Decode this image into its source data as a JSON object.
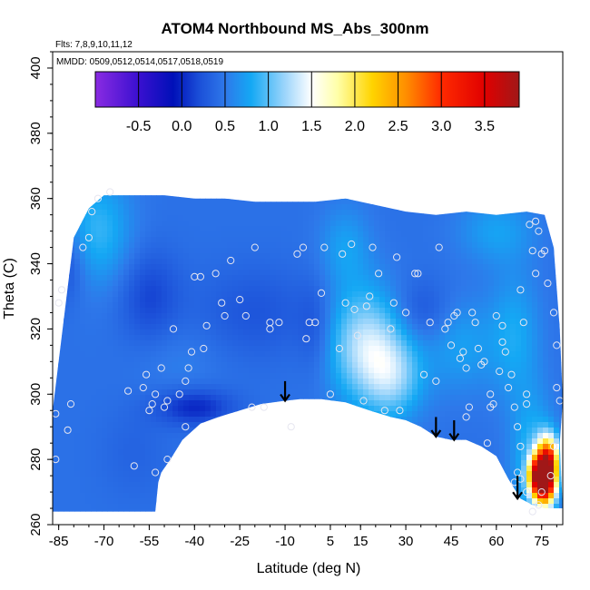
{
  "chart_data": {
    "type": "heatmap",
    "title": "ATOM4 Northbound MS_Abs_300nm",
    "subtitle_flights": "Flts: 7,8,9,10,11,12",
    "subtitle_dates": "MMDD: 0509,0512,0514,0517,0518,0519",
    "xlabel": "Latitude (deg N)",
    "ylabel": "Theta (C)",
    "xlim": [
      -87,
      82
    ],
    "ylim": [
      260,
      405
    ],
    "x_ticks": [
      -85,
      -70,
      -55,
      -40,
      -25,
      -10,
      5,
      15,
      30,
      45,
      60,
      75
    ],
    "x_tick_labels": [
      "-85",
      "-70",
      "-55",
      "-40",
      "-25",
      "-10",
      "5",
      "15",
      "30",
      "45",
      "60",
      "75"
    ],
    "y_ticks": [
      260,
      280,
      300,
      320,
      340,
      360,
      380,
      400
    ],
    "y_tick_labels": [
      "260",
      "280",
      "300",
      "320",
      "340",
      "360",
      "380",
      "400"
    ],
    "colorbar": {
      "range": [
        -1.0,
        3.9
      ],
      "ticks": [
        -0.5,
        0.0,
        0.5,
        1.0,
        1.5,
        2.0,
        2.5,
        3.0,
        3.5
      ],
      "tick_labels": [
        "-0.5",
        "0.0",
        "0.5",
        "1.0",
        "1.5",
        "2.0",
        "2.5",
        "3.0",
        "3.5"
      ],
      "stops": [
        {
          "v": -1.0,
          "color": "#8a2be2"
        },
        {
          "v": -0.5,
          "color": "#3a10d0"
        },
        {
          "v": -0.1,
          "color": "#0010b8"
        },
        {
          "v": 0.2,
          "color": "#1b4fd8"
        },
        {
          "v": 0.5,
          "color": "#2e78ea"
        },
        {
          "v": 0.8,
          "color": "#14a8f4"
        },
        {
          "v": 1.2,
          "color": "#9fd6fb"
        },
        {
          "v": 1.5,
          "color": "#ffffff"
        },
        {
          "v": 1.8,
          "color": "#ffffa8"
        },
        {
          "v": 2.2,
          "color": "#ffd400"
        },
        {
          "v": 2.6,
          "color": "#ff8c00"
        },
        {
          "v": 3.0,
          "color": "#ff2a00"
        },
        {
          "v": 3.5,
          "color": "#e00000"
        },
        {
          "v": 3.9,
          "color": "#a01818"
        }
      ]
    },
    "field_outline": [
      [
        -87,
        260
      ],
      [
        -87,
        295
      ],
      [
        -80,
        348
      ],
      [
        -75,
        357
      ],
      [
        -70,
        361
      ],
      [
        -60,
        361
      ],
      [
        -50,
        361
      ],
      [
        -40,
        360
      ],
      [
        -30,
        360
      ],
      [
        -20,
        359
      ],
      [
        -10,
        359
      ],
      [
        0,
        359
      ],
      [
        10,
        360
      ],
      [
        20,
        358
      ],
      [
        30,
        356
      ],
      [
        40,
        355
      ],
      [
        50,
        356
      ],
      [
        60,
        355
      ],
      [
        70,
        356
      ],
      [
        76,
        355
      ],
      [
        79,
        345
      ],
      [
        81,
        320
      ],
      [
        82,
        298
      ],
      [
        81,
        285
      ],
      [
        82,
        265
      ],
      [
        76,
        265
      ],
      [
        72,
        266
      ],
      [
        68,
        268
      ],
      [
        64,
        274
      ],
      [
        60,
        281
      ],
      [
        55,
        284
      ],
      [
        50,
        286
      ],
      [
        45,
        286
      ],
      [
        40,
        287
      ],
      [
        35,
        290
      ],
      [
        30,
        292
      ],
      [
        25,
        293
      ],
      [
        18,
        295
      ],
      [
        10,
        297.5
      ],
      [
        2,
        298.5
      ],
      [
        -5,
        298.5
      ],
      [
        -10,
        298
      ],
      [
        -18,
        297
      ],
      [
        -25,
        295
      ],
      [
        -32,
        293
      ],
      [
        -38,
        291
      ],
      [
        -44,
        286
      ],
      [
        -48,
        280
      ],
      [
        -51,
        276
      ],
      [
        -52,
        273
      ],
      [
        -53,
        264
      ],
      [
        -87,
        264
      ],
      [
        -87,
        260
      ]
    ],
    "background_value": 0.45,
    "field_features": [
      {
        "x": 17,
        "y": 315,
        "sx": 9,
        "sy": 12,
        "v": 1.3
      },
      {
        "x": 26,
        "y": 305,
        "sx": 7,
        "sy": 9,
        "v": 1.0
      },
      {
        "x": -72,
        "y": 350,
        "sx": 8,
        "sy": 12,
        "v": 0.9
      },
      {
        "x": 10,
        "y": 345,
        "sx": 6,
        "sy": 9,
        "v": 0.75
      },
      {
        "x": 48,
        "y": 315,
        "sx": 8,
        "sy": 10,
        "v": 0.75
      },
      {
        "x": 66,
        "y": 318,
        "sx": 6,
        "sy": 14,
        "v": 0.8
      },
      {
        "x": -45,
        "y": 310,
        "sx": 10,
        "sy": 8,
        "v": 0.55
      },
      {
        "x": 60,
        "y": 350,
        "sx": 9,
        "sy": 7,
        "v": 0.75
      },
      {
        "x": 72,
        "y": 280,
        "sx": 5,
        "sy": 14,
        "v": 0.9
      },
      {
        "x": -40,
        "y": 296,
        "sx": 9,
        "sy": 4,
        "v": 0.0
      },
      {
        "x": -55,
        "y": 330,
        "sx": 7,
        "sy": 10,
        "v": 0.15
      },
      {
        "x": -83,
        "y": 340,
        "sx": 5,
        "sy": 8,
        "v": 0.15
      },
      {
        "x": -20,
        "y": 325,
        "sx": 14,
        "sy": 10,
        "v": 0.25
      },
      {
        "x": 35,
        "y": 325,
        "sx": 7,
        "sy": 7,
        "v": 0.2
      },
      {
        "x": 0,
        "y": 320,
        "sx": 4,
        "sy": 10,
        "v": 0.25
      },
      {
        "x": -60,
        "y": 282,
        "sx": 8,
        "sy": 10,
        "v": 0.35
      },
      {
        "x": 76,
        "y": 273,
        "sx": 2.5,
        "sy": 5,
        "v": 3.6
      },
      {
        "x": 77,
        "y": 280,
        "sx": 2.5,
        "sy": 5,
        "v": 2.7
      },
      {
        "x": 73,
        "y": 275,
        "sx": 2,
        "sy": 4,
        "v": 2.0
      }
    ],
    "sample_points": [
      [
        -86,
        294
      ],
      [
        -86,
        280
      ],
      [
        -84,
        332
      ],
      [
        -85,
        328
      ],
      [
        -82,
        289
      ],
      [
        -81,
        297
      ],
      [
        -77,
        345
      ],
      [
        -75,
        348
      ],
      [
        -74,
        356
      ],
      [
        -72,
        360
      ],
      [
        -68,
        362
      ],
      [
        -62,
        301
      ],
      [
        -60,
        278
      ],
      [
        -57,
        302
      ],
      [
        -56,
        306
      ],
      [
        -55,
        295
      ],
      [
        -54,
        297
      ],
      [
        -53,
        300
      ],
      [
        -53,
        276
      ],
      [
        -51,
        308
      ],
      [
        -50,
        296
      ],
      [
        -49,
        298
      ],
      [
        -49,
        280
      ],
      [
        -47,
        320
      ],
      [
        -45,
        300
      ],
      [
        -43,
        304
      ],
      [
        -42,
        308
      ],
      [
        -43,
        290
      ],
      [
        -41,
        313
      ],
      [
        -40,
        336
      ],
      [
        -38,
        336
      ],
      [
        -37,
        314
      ],
      [
        -36,
        321
      ],
      [
        -33,
        337
      ],
      [
        -31,
        328
      ],
      [
        -30,
        324
      ],
      [
        -28,
        341
      ],
      [
        -25,
        329
      ],
      [
        -23,
        324
      ],
      [
        -21,
        296
      ],
      [
        -20,
        345
      ],
      [
        -17,
        296
      ],
      [
        -15,
        320
      ],
      [
        -15,
        322
      ],
      [
        -12,
        322
      ],
      [
        -8,
        290
      ],
      [
        -6,
        343
      ],
      [
        -4,
        345
      ],
      [
        -3,
        317
      ],
      [
        -2,
        322
      ],
      [
        0,
        322
      ],
      [
        2,
        331
      ],
      [
        3,
        345
      ],
      [
        5,
        300
      ],
      [
        8,
        314
      ],
      [
        9,
        343
      ],
      [
        10,
        328
      ],
      [
        12,
        346
      ],
      [
        13,
        326
      ],
      [
        14,
        318
      ],
      [
        16,
        298
      ],
      [
        17,
        327
      ],
      [
        18,
        330
      ],
      [
        19,
        345
      ],
      [
        21,
        337
      ],
      [
        23,
        295
      ],
      [
        25,
        320
      ],
      [
        26,
        328
      ],
      [
        27,
        342
      ],
      [
        28,
        295
      ],
      [
        30,
        325
      ],
      [
        33,
        337
      ],
      [
        34,
        337
      ],
      [
        36,
        306
      ],
      [
        38,
        322
      ],
      [
        40,
        304
      ],
      [
        41,
        345
      ],
      [
        43,
        320
      ],
      [
        44,
        322
      ],
      [
        45,
        315
      ],
      [
        46,
        324
      ],
      [
        47,
        325
      ],
      [
        48,
        311
      ],
      [
        49,
        313
      ],
      [
        50,
        308
      ],
      [
        50,
        293
      ],
      [
        51,
        296
      ],
      [
        52,
        325
      ],
      [
        53,
        322
      ],
      [
        54,
        314
      ],
      [
        55,
        309
      ],
      [
        56,
        310
      ],
      [
        57,
        285
      ],
      [
        58,
        300
      ],
      [
        58,
        296
      ],
      [
        59,
        297
      ],
      [
        60,
        324
      ],
      [
        61,
        307
      ],
      [
        62,
        321
      ],
      [
        62,
        316
      ],
      [
        63,
        313
      ],
      [
        64,
        302
      ],
      [
        65,
        306
      ],
      [
        66,
        296
      ],
      [
        67,
        290
      ],
      [
        68,
        284
      ],
      [
        68,
        332
      ],
      [
        69,
        322
      ],
      [
        70,
        300
      ],
      [
        70,
        297
      ],
      [
        71,
        352
      ],
      [
        72,
        344
      ],
      [
        73,
        353
      ],
      [
        73,
        337
      ],
      [
        74,
        350
      ],
      [
        75,
        343
      ],
      [
        76,
        344
      ],
      [
        77,
        334
      ],
      [
        79,
        325
      ],
      [
        80,
        315
      ],
      [
        80,
        302
      ],
      [
        81,
        298
      ],
      [
        79,
        284
      ],
      [
        78,
        275
      ],
      [
        75,
        270
      ],
      [
        74,
        266
      ],
      [
        72,
        264
      ],
      [
        70,
        270
      ],
      [
        68,
        274
      ],
      [
        67,
        276
      ],
      [
        66,
        273
      ]
    ],
    "arrows": [
      {
        "x": -10,
        "y_top": 304,
        "y_bottom": 298
      },
      {
        "x": 40,
        "y_top": 293,
        "y_bottom": 287
      },
      {
        "x": 46,
        "y_top": 292,
        "y_bottom": 286
      },
      {
        "x": 67,
        "y_top": 275,
        "y_bottom": 268
      }
    ]
  }
}
